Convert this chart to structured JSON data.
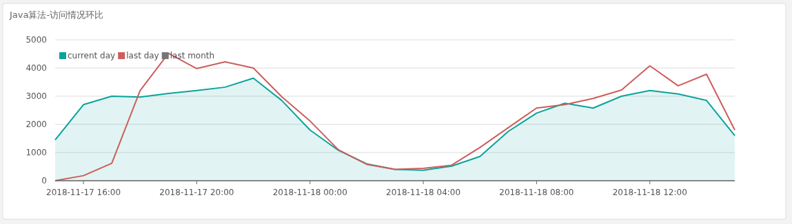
{
  "chart_data": {
    "type": "line",
    "title": "Java算法-访问情况环比",
    "x": [
      "2018-11-17T15:00",
      "2018-11-17T16:00",
      "2018-11-17T17:00",
      "2018-11-17T18:00",
      "2018-11-17T19:00",
      "2018-11-17T20:00",
      "2018-11-17T21:00",
      "2018-11-17T22:00",
      "2018-11-17T23:00",
      "2018-11-18T00:00",
      "2018-11-18T01:00",
      "2018-11-18T02:00",
      "2018-11-18T03:00",
      "2018-11-18T04:00",
      "2018-11-18T05:00",
      "2018-11-18T06:00",
      "2018-11-18T07:00",
      "2018-11-18T08:00",
      "2018-11-18T09:00",
      "2018-11-18T10:00",
      "2018-11-18T11:00",
      "2018-11-18T12:00",
      "2018-11-18T13:00",
      "2018-11-18T14:00",
      "2018-11-18T15:00"
    ],
    "series": [
      {
        "name": "current day",
        "type": "area",
        "color": "#0aa39b",
        "values": [
          1450,
          2700,
          3000,
          2970,
          3100,
          3200,
          3320,
          3640,
          2850,
          1800,
          1080,
          600,
          400,
          370,
          520,
          860,
          1750,
          2400,
          2750,
          2580,
          3000,
          3200,
          3080,
          2850,
          1600
        ]
      },
      {
        "name": "last day",
        "color": "#cc5d5c",
        "values": [
          0,
          180,
          620,
          3200,
          4520,
          3980,
          4220,
          4000,
          2980,
          2120,
          1100,
          580,
          400,
          440,
          550,
          1180,
          1880,
          2580,
          2700,
          2920,
          3220,
          4080,
          3370,
          3780,
          1800
        ]
      },
      {
        "name": "last month",
        "color": "#767676",
        "values": [
          null,
          null,
          null,
          null,
          null,
          null,
          null,
          null,
          null,
          null,
          null,
          null,
          null,
          null,
          null,
          null,
          null,
          null,
          null,
          null,
          null,
          null,
          null,
          null,
          null
        ]
      }
    ],
    "xlim": [
      "2018-11-17T15:00",
      "2018-11-18T15:00"
    ],
    "xticks": [
      {
        "value": "2018-11-17T16:00",
        "label": "2018-11-17 16:00"
      },
      {
        "value": "2018-11-17T20:00",
        "label": "2018-11-17 20:00"
      },
      {
        "value": "2018-11-18T00:00",
        "label": "2018-11-18 00:00"
      },
      {
        "value": "2018-11-18T04:00",
        "label": "2018-11-18 04:00"
      },
      {
        "value": "2018-11-18T08:00",
        "label": "2018-11-18 08:00"
      },
      {
        "value": "2018-11-18T12:00",
        "label": "2018-11-18 12:00"
      }
    ],
    "ylim": [
      0,
      5000
    ],
    "yticks": [
      0,
      1000,
      2000,
      3000,
      4000,
      5000
    ],
    "grid": "y",
    "legend": "top left",
    "marker": "none",
    "line_style": "solid"
  }
}
